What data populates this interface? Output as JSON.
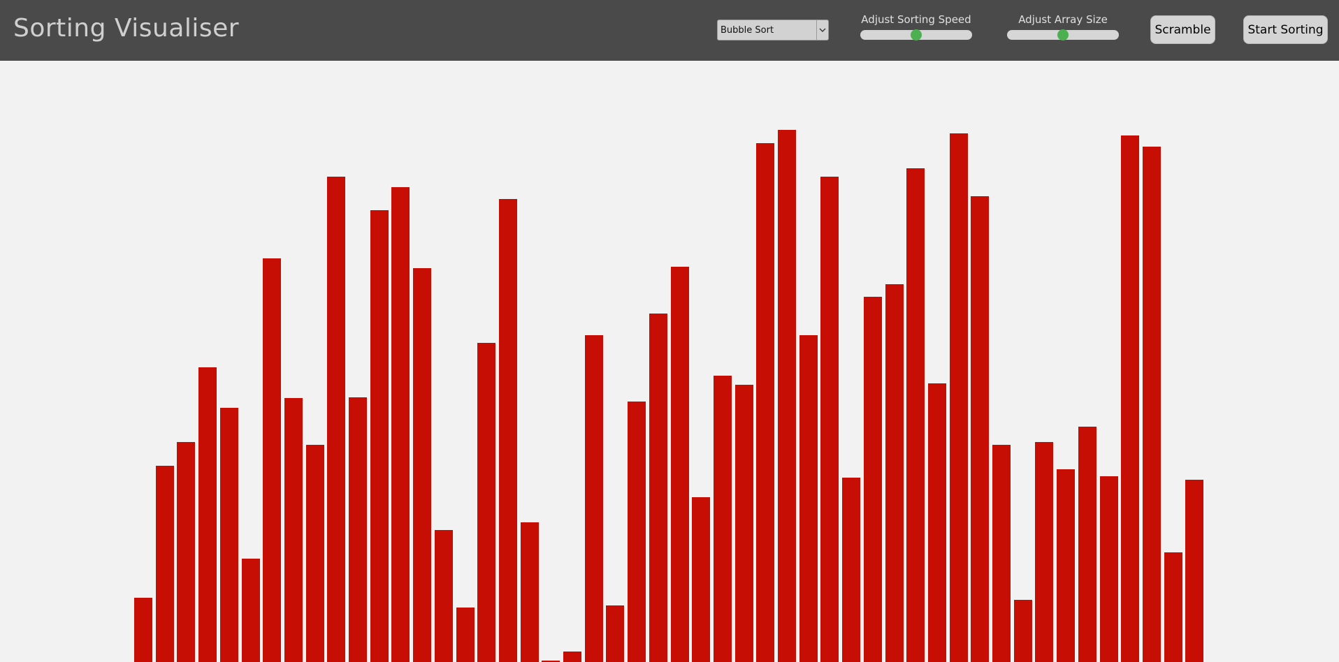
{
  "app": {
    "title": "Sorting Visualiser"
  },
  "controls": {
    "algorithm": {
      "selected": "Bubble Sort"
    },
    "speed_slider": {
      "label": "Adjust Sorting Speed",
      "value_fraction": 0.5
    },
    "size_slider": {
      "label": "Adjust Array Size",
      "value_fraction": 0.5
    },
    "scramble_label": "Scramble",
    "start_label": "Start Sorting"
  },
  "colors": {
    "navbar": "#4a4a4a",
    "bar": "#c70e05",
    "slider_thumb": "#4caf50",
    "background": "#f2f2f2"
  },
  "chart_data": {
    "type": "bar",
    "values": [
      91,
      277,
      311,
      417,
      359,
      146,
      571,
      373,
      307,
      686,
      374,
      639,
      671,
      557,
      187,
      77,
      451,
      655,
      197,
      2,
      15,
      462,
      80,
      368,
      493,
      559,
      233,
      405,
      392,
      734,
      752,
      462,
      686,
      261,
      516,
      534,
      698,
      394,
      747,
      658,
      307,
      88,
      311,
      272,
      333,
      263,
      744,
      729,
      155,
      258
    ],
    "ylim": [
      0,
      850
    ]
  }
}
